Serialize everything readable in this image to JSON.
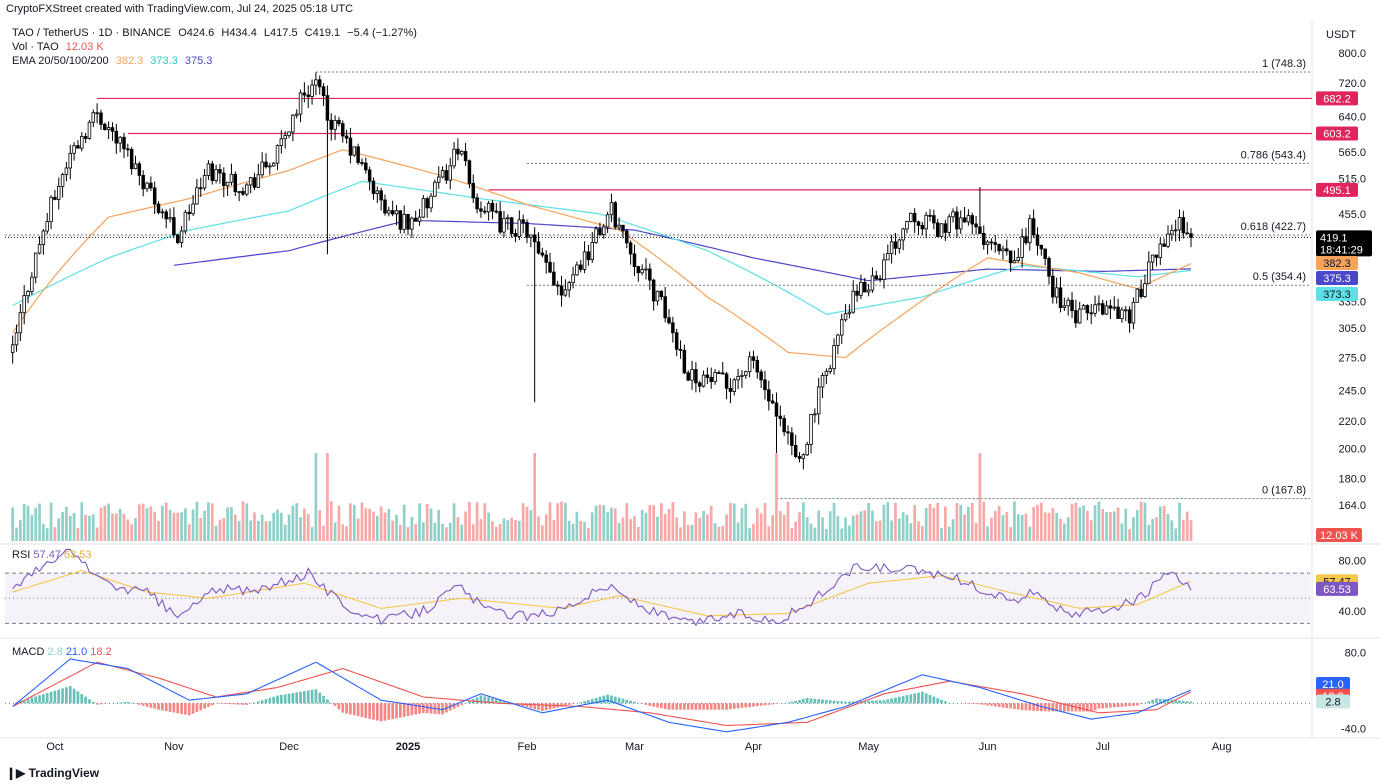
{
  "header": {
    "caption": "CryptoFXStreet created with TradingView.com, Jul 24, 2025 05:18 UTC",
    "symbol": "TAO / TetherUS · 1D · BINANCE",
    "ohlc": {
      "O": "424.6",
      "H": "434.4",
      "L": "417.5",
      "C": "419.1",
      "change": "−5.4 (−1.27%)"
    },
    "vol_label": "Vol · TAO",
    "vol_value": "12.03 K",
    "ema_label": "EMA 20/50/100/200",
    "ema_values": [
      "382.3",
      "373.3",
      "375.3"
    ],
    "currency": "USDT"
  },
  "colors": {
    "up": "#26a69a",
    "down": "#ef5350",
    "up_vol": "#8fd1c9",
    "down_vol": "#f7a9a7",
    "ema50": "#f7a35c",
    "ema100": "#5ee1e6",
    "ema200": "#4a47c8",
    "resistance": "#e0245e",
    "rsi": "#7e57c2",
    "rsi_ma": "#f5c84b",
    "macd": "#2962ff",
    "signal": "#ef5350"
  },
  "chart_data": [
    {
      "type": "candlestick",
      "title": "TAO / TetherUS · 1D · BINANCE",
      "y_scale": "log",
      "ylim": [
        160,
        800
      ],
      "y_ticks": [
        "800.0",
        "720.0",
        "640.0",
        "565.0",
        "515.0",
        "455.0",
        "335.0",
        "305.0",
        "275.0",
        "245.0",
        "220.0",
        "200.0",
        "180.0",
        "164.0"
      ],
      "x_ticks": [
        "Oct",
        "Nov",
        "Dec",
        "2025",
        "Feb",
        "Mar",
        "Apr",
        "May",
        "Jun",
        "Jul",
        "Aug"
      ],
      "last_price": "419.1",
      "countdown": "18:41:29",
      "fib_levels": [
        {
          "label": "1 (748.3)",
          "value": 748.3
        },
        {
          "label": "0.786 (543.4)",
          "value": 543.4
        },
        {
          "label": "0.618 (422.7)",
          "value": 422.7
        },
        {
          "label": "0.5 (354.4)",
          "value": 354.4
        },
        {
          "label": "0 (167.8)",
          "value": 167.8
        }
      ],
      "resistance_levels": [
        {
          "label": "682.2",
          "value": 682.2
        },
        {
          "label": "603.2",
          "value": 603.2
        },
        {
          "label": "495.1",
          "value": 495.1
        }
      ],
      "ema_tags": [
        {
          "label": "382.3",
          "value": 382.3
        },
        {
          "label": "375.3",
          "value": 375.3
        },
        {
          "label": "373.3",
          "value": 373.3
        }
      ],
      "close_keypoints": [
        [
          "2024-09-20",
          280
        ],
        [
          "2024-10-05",
          560
        ],
        [
          "2024-10-12",
          650
        ],
        [
          "2024-10-20",
          560
        ],
        [
          "2024-10-27",
          480
        ],
        [
          "2024-11-02",
          420
        ],
        [
          "2024-11-10",
          530
        ],
        [
          "2024-11-20",
          500
        ],
        [
          "2024-11-28",
          560
        ],
        [
          "2024-12-05",
          700
        ],
        [
          "2024-12-08",
          720
        ],
        [
          "2024-12-11",
          640
        ],
        [
          "2024-12-18",
          560
        ],
        [
          "2024-12-26",
          460
        ],
        [
          "2025-01-01",
          440
        ],
        [
          "2025-01-06",
          470
        ],
        [
          "2025-01-12",
          540
        ],
        [
          "2025-01-14",
          580
        ],
        [
          "2025-01-18",
          480
        ],
        [
          "2025-01-25",
          440
        ],
        [
          "2025-02-01",
          430
        ],
        [
          "2025-02-04",
          390
        ],
        [
          "2025-02-10",
          350
        ],
        [
          "2025-02-17",
          400
        ],
        [
          "2025-02-23",
          460
        ],
        [
          "2025-03-01",
          390
        ],
        [
          "2025-03-08",
          330
        ],
        [
          "2025-03-15",
          260
        ],
        [
          "2025-03-25",
          250
        ],
        [
          "2025-04-01",
          270
        ],
        [
          "2025-04-07",
          220
        ],
        [
          "2025-04-13",
          190
        ],
        [
          "2025-04-18",
          240
        ],
        [
          "2025-04-26",
          330
        ],
        [
          "2025-05-05",
          380
        ],
        [
          "2025-05-12",
          460
        ],
        [
          "2025-05-19",
          430
        ],
        [
          "2025-05-25",
          450
        ],
        [
          "2025-06-01",
          410
        ],
        [
          "2025-06-08",
          380
        ],
        [
          "2025-06-12",
          440
        ],
        [
          "2025-06-18",
          350
        ],
        [
          "2025-06-24",
          315
        ],
        [
          "2025-07-01",
          330
        ],
        [
          "2025-07-08",
          320
        ],
        [
          "2025-07-12",
          360
        ],
        [
          "2025-07-18",
          430
        ],
        [
          "2025-07-22",
          440
        ],
        [
          "2025-07-24",
          419.1
        ]
      ],
      "ema50_keypoints": [
        [
          "2024-09-20",
          300
        ],
        [
          "2024-10-15",
          450
        ],
        [
          "2024-11-05",
          480
        ],
        [
          "2024-12-01",
          530
        ],
        [
          "2024-12-15",
          570
        ],
        [
          "2025-01-10",
          520
        ],
        [
          "2025-02-01",
          470
        ],
        [
          "2025-02-25",
          430
        ],
        [
          "2025-03-20",
          340
        ],
        [
          "2025-04-10",
          280
        ],
        [
          "2025-04-25",
          275
        ],
        [
          "2025-05-10",
          320
        ],
        [
          "2025-06-01",
          390
        ],
        [
          "2025-06-25",
          370
        ],
        [
          "2025-07-10",
          350
        ],
        [
          "2025-07-24",
          382.3
        ]
      ],
      "ema100_keypoints": [
        [
          "2024-09-20",
          330
        ],
        [
          "2024-10-15",
          390
        ],
        [
          "2024-11-05",
          430
        ],
        [
          "2024-12-01",
          460
        ],
        [
          "2024-12-20",
          510
        ],
        [
          "2025-01-20",
          480
        ],
        [
          "2025-02-20",
          455
        ],
        [
          "2025-03-20",
          400
        ],
        [
          "2025-04-20",
          320
        ],
        [
          "2025-05-15",
          340
        ],
        [
          "2025-06-10",
          380
        ],
        [
          "2025-07-10",
          365
        ],
        [
          "2025-07-24",
          373.3
        ]
      ],
      "ema200_keypoints": [
        [
          "2024-11-01",
          380
        ],
        [
          "2024-12-01",
          400
        ],
        [
          "2025-01-01",
          445
        ],
        [
          "2025-02-01",
          440
        ],
        [
          "2025-03-01",
          430
        ],
        [
          "2025-04-01",
          390
        ],
        [
          "2025-05-01",
          360
        ],
        [
          "2025-06-01",
          375
        ],
        [
          "2025-07-01",
          372
        ],
        [
          "2025-07-24",
          375.3
        ]
      ]
    },
    {
      "type": "bar",
      "title": "Vol · TAO",
      "last_value": "12.03 K",
      "note": "daily volume histogram, colored by candle direction"
    },
    {
      "type": "line",
      "title": "RSI",
      "values_label": [
        "57.47",
        "63.53"
      ],
      "ylim": [
        20,
        90
      ],
      "y_ticks": [
        "80.00",
        "40.00"
      ],
      "bands": [
        70,
        50,
        30
      ],
      "rsi_last": 57.47,
      "rsi_ma_last": 63.53,
      "rsi_keypoints": [
        [
          "2024-09-20",
          60
        ],
        [
          "2024-10-05",
          88
        ],
        [
          "2024-10-15",
          60
        ],
        [
          "2024-10-25",
          55
        ],
        [
          "2024-11-02",
          35
        ],
        [
          "2024-11-12",
          58
        ],
        [
          "2024-11-22",
          55
        ],
        [
          "2024-12-06",
          70
        ],
        [
          "2024-12-15",
          45
        ],
        [
          "2024-12-25",
          32
        ],
        [
          "2025-01-05",
          40
        ],
        [
          "2025-01-14",
          60
        ],
        [
          "2025-01-22",
          40
        ],
        [
          "2025-02-03",
          35
        ],
        [
          "2025-02-10",
          42
        ],
        [
          "2025-02-22",
          60
        ],
        [
          "2025-03-05",
          40
        ],
        [
          "2025-03-15",
          30
        ],
        [
          "2025-03-28",
          38
        ],
        [
          "2025-04-07",
          32
        ],
        [
          "2025-04-15",
          45
        ],
        [
          "2025-04-28",
          75
        ],
        [
          "2025-05-12",
          72
        ],
        [
          "2025-05-22",
          68
        ],
        [
          "2025-06-01",
          55
        ],
        [
          "2025-06-08",
          48
        ],
        [
          "2025-06-14",
          56
        ],
        [
          "2025-06-22",
          35
        ],
        [
          "2025-07-02",
          42
        ],
        [
          "2025-07-10",
          48
        ],
        [
          "2025-07-18",
          70
        ],
        [
          "2025-07-24",
          57.47
        ]
      ],
      "rsi_ma_keypoints": [
        [
          "2024-09-20",
          55
        ],
        [
          "2024-10-08",
          72
        ],
        [
          "2024-10-25",
          55
        ],
        [
          "2024-11-10",
          50
        ],
        [
          "2024-12-05",
          62
        ],
        [
          "2024-12-25",
          42
        ],
        [
          "2025-01-15",
          50
        ],
        [
          "2025-02-10",
          42
        ],
        [
          "2025-02-25",
          52
        ],
        [
          "2025-03-20",
          36
        ],
        [
          "2025-04-10",
          38
        ],
        [
          "2025-05-01",
          62
        ],
        [
          "2025-05-20",
          68
        ],
        [
          "2025-06-05",
          56
        ],
        [
          "2025-06-25",
          42
        ],
        [
          "2025-07-10",
          45
        ],
        [
          "2025-07-24",
          63.53
        ]
      ]
    },
    {
      "type": "line",
      "title": "MACD",
      "values_label": [
        "2.8",
        "21.0",
        "18.2"
      ],
      "ylim": [
        -50,
        100
      ],
      "y_ticks": [
        "80.0",
        "-40.0"
      ],
      "macd_last": 21.0,
      "signal_last": 18.2,
      "hist_last": 2.8,
      "macd_keypoints": [
        [
          "2024-09-20",
          -5
        ],
        [
          "2024-10-05",
          70
        ],
        [
          "2024-10-20",
          55
        ],
        [
          "2024-11-05",
          5
        ],
        [
          "2024-11-20",
          15
        ],
        [
          "2024-12-08",
          65
        ],
        [
          "2024-12-25",
          5
        ],
        [
          "2025-01-10",
          -10
        ],
        [
          "2025-01-20",
          15
        ],
        [
          "2025-02-05",
          -15
        ],
        [
          "2025-02-22",
          5
        ],
        [
          "2025-03-10",
          -30
        ],
        [
          "2025-03-25",
          -45
        ],
        [
          "2025-04-10",
          -30
        ],
        [
          "2025-04-25",
          -5
        ],
        [
          "2025-05-15",
          45
        ],
        [
          "2025-05-30",
          25
        ],
        [
          "2025-06-15",
          -5
        ],
        [
          "2025-06-28",
          -25
        ],
        [
          "2025-07-10",
          -15
        ],
        [
          "2025-07-24",
          21
        ]
      ],
      "signal_keypoints": [
        [
          "2024-09-20",
          -5
        ],
        [
          "2024-10-12",
          65
        ],
        [
          "2024-10-28",
          40
        ],
        [
          "2024-11-12",
          10
        ],
        [
          "2024-11-28",
          25
        ],
        [
          "2024-12-15",
          55
        ],
        [
          "2025-01-05",
          10
        ],
        [
          "2025-01-25",
          0
        ],
        [
          "2025-02-15",
          -5
        ],
        [
          "2025-03-05",
          -15
        ],
        [
          "2025-03-25",
          -35
        ],
        [
          "2025-04-15",
          -30
        ],
        [
          "2025-05-05",
          15
        ],
        [
          "2025-05-22",
          35
        ],
        [
          "2025-06-10",
          15
        ],
        [
          "2025-06-30",
          -15
        ],
        [
          "2025-07-15",
          -10
        ],
        [
          "2025-07-24",
          18.2
        ]
      ]
    }
  ]
}
